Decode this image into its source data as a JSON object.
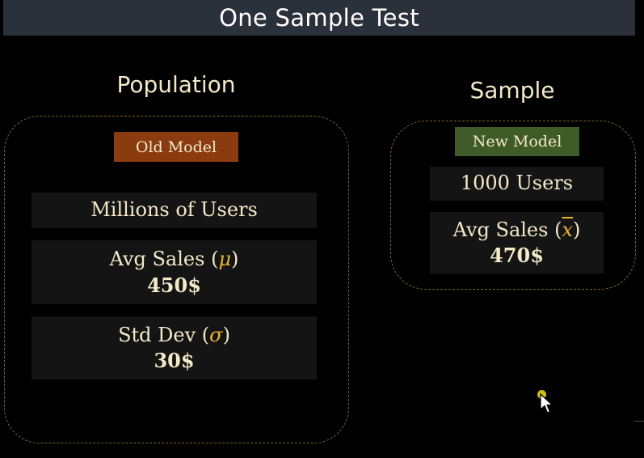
{
  "title": "One Sample Test",
  "population": {
    "heading": "Population",
    "tag": "Old Model",
    "tag_color": "#8a3c10",
    "users": "Millions of Users",
    "avg_label": "Avg Sales",
    "avg_symbol": "μ",
    "avg_value": "450$",
    "std_label": "Std Dev",
    "std_symbol": "σ",
    "std_value": "30$"
  },
  "sample": {
    "heading": "Sample",
    "tag": "New Model",
    "tag_color": "#3f5b27",
    "users": "1000 Users",
    "avg_label": "Avg Sales",
    "avg_symbol": "x",
    "avg_value": "470$"
  },
  "colors": {
    "background": "#000000",
    "title_bar": "#2b313b",
    "text": "#f3e9c8",
    "symbol": "#e8b530",
    "dashed_border": "#7a6432",
    "card": "#141414"
  },
  "icons": {
    "cursor": "mouse-pointer-icon"
  }
}
